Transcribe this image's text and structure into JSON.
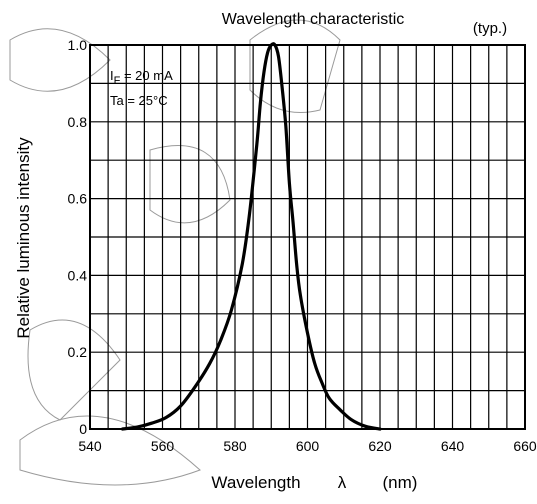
{
  "chart_data": {
    "type": "line",
    "title": "Wavelength characteristic",
    "subtitle": "(typ.)",
    "xlabel_parts": [
      "Wavelength",
      "λ",
      "(nm)"
    ],
    "ylabel": "Relative luminous intensity",
    "xlim": [
      540,
      660
    ],
    "ylim": [
      0,
      1.0
    ],
    "x_ticks": [
      540,
      560,
      580,
      600,
      620,
      640,
      660
    ],
    "x_tick_labels": [
      "540",
      "560",
      "580",
      "600",
      "620",
      "640",
      "660"
    ],
    "y_ticks": [
      0,
      0.2,
      0.4,
      0.6,
      0.8,
      1.0
    ],
    "y_tick_labels": [
      "0",
      "0.2",
      "0.4",
      "0.6",
      "0.8",
      "1.0"
    ],
    "grid": true,
    "annotations": {
      "current_prefix": "I",
      "current_sub": "F",
      "current_value": " = 20 mA",
      "temperature": "Ta = 25°C"
    },
    "series": [
      {
        "x": [
          549,
          553,
          557,
          561,
          565,
          569,
          573,
          576,
          579,
          582,
          584,
          586,
          587,
          588,
          589,
          590,
          591,
          592,
          593,
          594,
          595,
          596,
          597,
          598,
          600,
          602,
          604,
          606,
          609,
          612,
          616,
          620
        ],
        "y": [
          0.0,
          0.005,
          0.015,
          0.03,
          0.06,
          0.11,
          0.17,
          0.23,
          0.31,
          0.43,
          0.56,
          0.74,
          0.85,
          0.93,
          0.98,
          1.0,
          1.0,
          0.97,
          0.89,
          0.79,
          0.64,
          0.54,
          0.43,
          0.35,
          0.25,
          0.17,
          0.12,
          0.08,
          0.05,
          0.025,
          0.007,
          0.0
        ]
      }
    ]
  }
}
